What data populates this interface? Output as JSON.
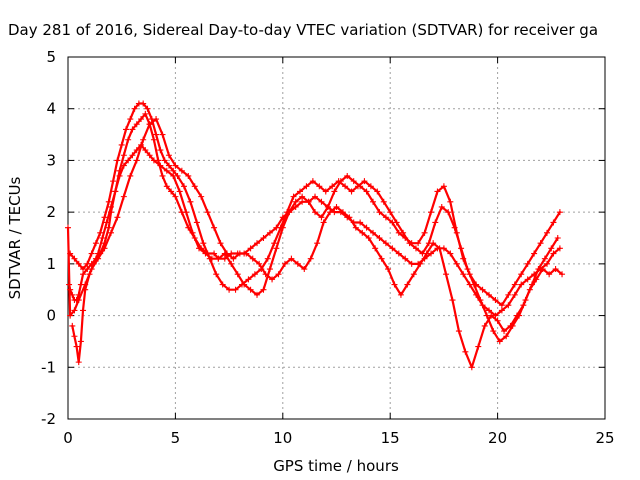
{
  "chart_data": {
    "type": "scatter",
    "title": "Day 281 of 2016, Sidereal Day-to-day VTEC variation (SDTVAR) for receiver ga",
    "xlabel": "GPS time / hours",
    "ylabel": "SDTVAR / TECUs",
    "xlim": [
      0,
      25
    ],
    "ylim": [
      -2,
      5
    ],
    "xticks": [
      "0",
      "5",
      "10",
      "15",
      "20",
      "25"
    ],
    "yticks": [
      "-2",
      "-1",
      "0",
      "1",
      "2",
      "3",
      "4",
      "5"
    ],
    "grid": true,
    "legend": "none",
    "marker": "plus",
    "color": "#ff0000",
    "series": [
      {
        "name": "",
        "x": [
          0.05,
          0.1,
          0.2,
          0.3,
          0.4,
          0.5,
          0.6,
          0.7,
          0.9,
          1.1,
          1.3,
          1.5,
          1.7,
          1.9,
          2.0,
          2.2,
          2.4,
          2.6,
          2.8,
          3.0,
          3.2,
          3.4,
          3.6,
          3.8,
          4.0,
          4.2,
          4.4,
          4.6,
          4.8,
          5.0,
          5.3,
          5.6,
          5.9,
          6.2,
          6.5,
          6.8,
          7.0,
          7.3,
          7.6,
          7.9,
          8.2,
          8.5,
          8.8,
          9.1,
          9.4,
          9.7,
          10.0,
          10.3,
          10.6,
          10.9,
          11.2,
          11.5,
          11.8,
          12.1,
          12.4,
          12.7,
          13.0,
          13.3,
          13.6,
          13.9,
          14.2,
          14.5,
          14.8,
          15.1,
          15.4,
          15.7,
          16.0,
          16.3,
          16.6,
          16.9,
          17.2,
          17.5,
          17.8,
          18.1,
          18.4,
          18.7,
          19.0,
          19.3,
          19.6,
          19.9,
          20.2,
          20.5,
          20.8,
          21.1,
          21.4,
          21.7,
          22.0,
          22.3,
          22.6,
          22.9
        ],
        "y": [
          0.6,
          0.5,
          0.4,
          0.3,
          0.3,
          0.4,
          0.6,
          0.8,
          0.9,
          1.0,
          1.1,
          1.2,
          1.4,
          1.7,
          2.0,
          2.4,
          2.8,
          3.1,
          3.4,
          3.6,
          3.7,
          3.8,
          3.9,
          3.7,
          3.4,
          3.0,
          2.7,
          2.5,
          2.4,
          2.3,
          2.0,
          1.7,
          1.5,
          1.3,
          1.2,
          1.2,
          1.1,
          1.1,
          1.2,
          1.2,
          1.2,
          1.3,
          1.4,
          1.5,
          1.6,
          1.7,
          1.9,
          2.0,
          2.1,
          2.2,
          2.2,
          2.3,
          2.2,
          2.1,
          2.0,
          2.0,
          1.9,
          1.8,
          1.8,
          1.7,
          1.6,
          1.5,
          1.4,
          1.3,
          1.2,
          1.1,
          1.0,
          1.0,
          1.1,
          1.2,
          1.3,
          1.3,
          1.2,
          1.0,
          0.8,
          0.6,
          0.4,
          0.2,
          0.1,
          0.0,
          0.1,
          0.2,
          0.4,
          0.6,
          0.7,
          0.8,
          0.9,
          1.0,
          1.2,
          1.3
        ]
      },
      {
        "name": "",
        "x": [
          0.1,
          0.3,
          0.5,
          0.7,
          0.9,
          1.1,
          1.3,
          1.5,
          1.7,
          1.9,
          2.1,
          2.3,
          2.5,
          2.7,
          2.9,
          3.1,
          3.3,
          3.5,
          3.7,
          3.9,
          4.1,
          4.3,
          4.5,
          4.7,
          4.9,
          5.1,
          5.4,
          5.7,
          6.0,
          6.3,
          6.6,
          6.9,
          7.2,
          7.5,
          7.8,
          8.1,
          8.4,
          8.7,
          9.0,
          9.3,
          9.6,
          9.9,
          10.2,
          10.5,
          10.8,
          11.1,
          11.4,
          11.7,
          12.0,
          12.3,
          12.6,
          12.9,
          13.2,
          13.5,
          13.8,
          14.1,
          14.4,
          14.7,
          15.0,
          15.3,
          15.6,
          15.9,
          16.2,
          16.5,
          16.8,
          17.1,
          17.4,
          17.7,
          18.0,
          18.3,
          18.6,
          18.9,
          19.2,
          19.5,
          19.8,
          20.1,
          20.4,
          20.7,
          21.0,
          21.3,
          21.6,
          21.9,
          22.2,
          22.5,
          22.8
        ],
        "y": [
          1.2,
          1.1,
          1.0,
          0.9,
          1.0,
          1.2,
          1.4,
          1.6,
          1.9,
          2.2,
          2.6,
          3.0,
          3.3,
          3.6,
          3.8,
          4.0,
          4.1,
          4.1,
          4.0,
          3.8,
          3.5,
          3.2,
          3.0,
          2.9,
          2.8,
          2.7,
          2.5,
          2.2,
          1.8,
          1.4,
          1.1,
          0.8,
          0.6,
          0.5,
          0.5,
          0.6,
          0.7,
          0.8,
          0.9,
          1.1,
          1.4,
          1.7,
          2.0,
          2.3,
          2.4,
          2.5,
          2.6,
          2.5,
          2.4,
          2.5,
          2.6,
          2.5,
          2.4,
          2.5,
          2.6,
          2.5,
          2.4,
          2.2,
          2.0,
          1.8,
          1.6,
          1.4,
          1.3,
          1.2,
          1.4,
          1.8,
          2.1,
          2.0,
          1.7,
          1.3,
          0.9,
          0.6,
          0.3,
          0.0,
          -0.3,
          -0.5,
          -0.4,
          -0.2,
          0.0,
          0.3,
          0.6,
          0.9,
          1.1,
          1.3,
          1.5
        ]
      },
      {
        "name": "",
        "x": [
          0.2,
          0.3,
          0.4,
          0.5,
          0.6,
          0.7,
          0.8,
          1.0,
          1.2,
          1.4,
          1.6,
          1.8,
          2.0,
          2.2,
          2.4,
          2.6,
          2.8,
          3.0,
          3.2,
          3.4,
          3.6,
          3.8,
          4.0,
          4.3,
          4.6,
          4.9,
          5.2,
          5.5,
          5.8,
          6.1,
          6.4,
          6.7,
          7.0,
          7.3,
          7.6,
          7.9,
          8.2,
          8.5,
          8.8,
          9.1,
          9.4,
          9.7,
          10.0,
          10.3,
          10.6,
          10.9,
          11.2,
          11.5,
          11.8,
          12.1,
          12.4,
          12.7,
          13.0,
          13.3,
          13.6,
          13.9,
          14.2,
          14.5,
          14.8,
          15.1,
          15.4,
          15.7,
          16.0,
          16.3,
          16.6,
          16.9,
          17.2,
          17.5,
          17.8,
          18.1,
          18.4,
          18.7,
          19.0,
          19.3,
          19.6,
          19.9,
          20.2,
          20.5,
          20.8,
          21.1,
          21.4,
          21.7,
          22.0,
          22.3,
          22.6,
          22.9
        ],
        "y": [
          -0.2,
          -0.4,
          -0.6,
          -0.9,
          -0.5,
          0.1,
          0.5,
          0.8,
          1.0,
          1.2,
          1.5,
          1.8,
          2.1,
          2.4,
          2.7,
          2.9,
          3.0,
          3.1,
          3.2,
          3.3,
          3.2,
          3.1,
          3.0,
          2.9,
          2.8,
          2.7,
          2.4,
          2.0,
          1.6,
          1.3,
          1.2,
          1.1,
          1.1,
          1.2,
          1.0,
          0.8,
          0.6,
          0.5,
          0.4,
          0.5,
          0.9,
          1.3,
          1.7,
          2.0,
          2.2,
          2.3,
          2.2,
          2.0,
          1.9,
          2.1,
          2.4,
          2.6,
          2.7,
          2.6,
          2.5,
          2.4,
          2.2,
          2.0,
          1.9,
          1.8,
          1.6,
          1.5,
          1.4,
          1.4,
          1.6,
          2.0,
          2.4,
          2.5,
          2.2,
          1.6,
          1.1,
          0.8,
          0.6,
          0.5,
          0.4,
          0.3,
          0.2,
          0.4,
          0.6,
          0.8,
          1.0,
          1.2,
          1.4,
          1.6,
          1.8,
          2.0
        ]
      },
      {
        "name": "",
        "x": [
          0.0,
          0.1,
          0.3,
          0.5,
          0.8,
          1.1,
          1.4,
          1.7,
          2.0,
          2.3,
          2.6,
          2.9,
          3.2,
          3.5,
          3.8,
          4.1,
          4.4,
          4.7,
          5.0,
          5.3,
          5.6,
          5.9,
          6.2,
          6.5,
          6.8,
          7.1,
          7.4,
          7.7,
          8.0,
          8.3,
          8.6,
          8.9,
          9.2,
          9.5,
          9.8,
          10.1,
          10.4,
          10.7,
          11.0,
          11.3,
          11.6,
          11.9,
          12.2,
          12.5,
          12.8,
          13.1,
          13.4,
          13.7,
          14.0,
          14.3,
          14.6,
          14.9,
          15.2,
          15.5,
          15.8,
          16.1,
          16.4,
          16.7,
          17.0,
          17.3,
          17.6,
          17.9,
          18.2,
          18.5,
          18.8,
          19.1,
          19.4,
          19.7,
          20.0,
          20.3,
          20.6,
          20.9,
          21.2,
          21.5,
          21.8,
          22.1,
          22.4,
          22.7,
          23.0
        ],
        "y": [
          1.7,
          0.0,
          0.1,
          0.3,
          0.6,
          0.9,
          1.1,
          1.3,
          1.6,
          1.9,
          2.3,
          2.7,
          3.0,
          3.4,
          3.7,
          3.8,
          3.5,
          3.1,
          2.9,
          2.8,
          2.7,
          2.5,
          2.3,
          2.0,
          1.7,
          1.4,
          1.2,
          1.1,
          1.2,
          1.2,
          1.1,
          1.0,
          0.8,
          0.7,
          0.8,
          1.0,
          1.1,
          1.0,
          0.9,
          1.1,
          1.4,
          1.8,
          2.0,
          2.1,
          2.0,
          1.9,
          1.7,
          1.6,
          1.5,
          1.3,
          1.1,
          0.9,
          0.6,
          0.4,
          0.6,
          0.8,
          1.0,
          1.2,
          1.4,
          1.3,
          0.8,
          0.3,
          -0.3,
          -0.7,
          -1.0,
          -0.6,
          -0.2,
          0.0,
          -0.1,
          -0.3,
          -0.2,
          0.0,
          0.2,
          0.5,
          0.7,
          0.9,
          0.8,
          0.9,
          0.8
        ]
      }
    ]
  }
}
